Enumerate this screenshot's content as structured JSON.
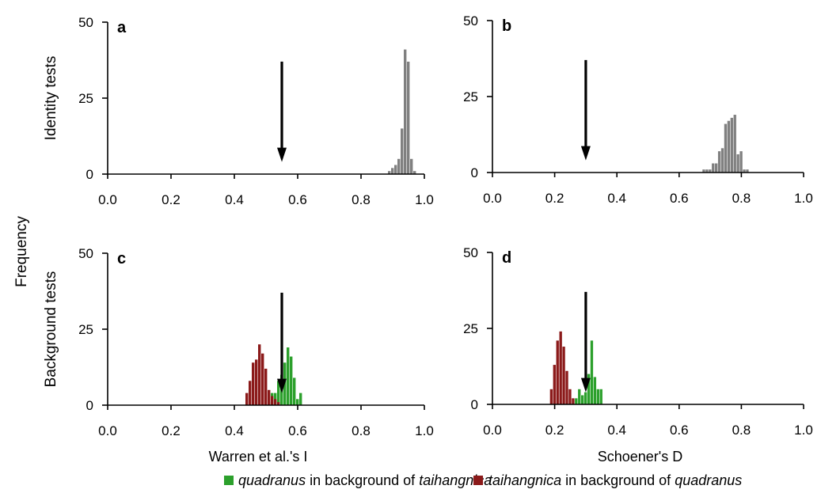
{
  "figure": {
    "ylabel_outer": "Frequency",
    "row_labels": [
      "Identity tests",
      "Background tests"
    ],
    "legend": [
      {
        "prefix": "quadranus",
        "middle": " in background of ",
        "suffix": "taihangnica",
        "color": "#2ca02c"
      },
      {
        "prefix": "taihangnica",
        "middle": " in background of ",
        "suffix": "quadranus",
        "color": "#8b1a1a"
      }
    ]
  },
  "chart_data": [
    {
      "panel": "a",
      "type": "bar",
      "xlabel": "",
      "ylabel": "Identity tests",
      "xlim": [
        0,
        1
      ],
      "ylim": [
        0,
        50
      ],
      "xticks": [
        "0.0",
        "0.2",
        "0.4",
        "0.6",
        "0.8",
        "1.0"
      ],
      "yticks": [
        "0",
        "25",
        "50"
      ],
      "bin_width": 0.01,
      "arrow_x": 0.55,
      "series": [
        {
          "color": "#808080",
          "x": [
            0.89,
            0.9,
            0.91,
            0.92,
            0.93,
            0.94,
            0.95,
            0.96,
            0.97
          ],
          "values": [
            1,
            2,
            3,
            5,
            15,
            41,
            37,
            5,
            1
          ]
        }
      ]
    },
    {
      "panel": "b",
      "type": "bar",
      "xlabel": "",
      "ylabel": "",
      "xlim": [
        0,
        1
      ],
      "ylim": [
        0,
        50
      ],
      "xticks": [
        "0.0",
        "0.2",
        "0.4",
        "0.6",
        "0.8",
        "1.0"
      ],
      "yticks": [
        "0",
        "25",
        "50"
      ],
      "bin_width": 0.01,
      "arrow_x": 0.3,
      "series": [
        {
          "color": "#808080",
          "x": [
            0.68,
            0.69,
            0.7,
            0.71,
            0.72,
            0.73,
            0.74,
            0.75,
            0.76,
            0.77,
            0.78,
            0.79,
            0.8,
            0.81,
            0.82,
            0.83
          ],
          "values": [
            1,
            1,
            1,
            3,
            3,
            7,
            8,
            16,
            17,
            18,
            19,
            6,
            7,
            1,
            1,
            0
          ]
        }
      ]
    },
    {
      "panel": "c",
      "type": "bar",
      "xlabel": "Warren et al.'s I",
      "ylabel": "Background tests",
      "xlim": [
        0,
        1
      ],
      "ylim": [
        0,
        50
      ],
      "xticks": [
        "0.0",
        "0.2",
        "0.4",
        "0.6",
        "0.8",
        "1.0"
      ],
      "yticks": [
        "0",
        "25",
        "50"
      ],
      "bin_width": 0.01,
      "arrow_x": 0.55,
      "series": [
        {
          "name": "quadranus in background of taihangnica",
          "color": "#2ca02c",
          "x": [
            0.51,
            0.52,
            0.53,
            0.54,
            0.55,
            0.56,
            0.57,
            0.58,
            0.59,
            0.6,
            0.61
          ],
          "values": [
            1,
            4,
            4,
            8,
            10,
            14,
            19,
            16,
            9,
            2,
            4
          ]
        },
        {
          "name": "taihangnica in background of quadranus",
          "color": "#8b1a1a",
          "x": [
            0.44,
            0.45,
            0.46,
            0.47,
            0.48,
            0.49,
            0.5,
            0.51,
            0.52,
            0.53,
            0.54
          ],
          "values": [
            4,
            8,
            14,
            15,
            20,
            17,
            12,
            5,
            3,
            2,
            1
          ]
        }
      ]
    },
    {
      "panel": "d",
      "type": "bar",
      "xlabel": "Schoener's D",
      "ylabel": "",
      "xlim": [
        0,
        1
      ],
      "ylim": [
        0,
        50
      ],
      "xticks": [
        "0.0",
        "0.2",
        "0.4",
        "0.6",
        "0.8",
        "1.0"
      ],
      "yticks": [
        "0",
        "25",
        "50"
      ],
      "bin_width": 0.01,
      "arrow_x": 0.3,
      "series": [
        {
          "name": "quadranus in background of taihangnica",
          "color": "#2ca02c",
          "x": [
            0.27,
            0.28,
            0.29,
            0.3,
            0.31,
            0.32,
            0.33,
            0.34,
            0.35
          ],
          "values": [
            2,
            5,
            3,
            4,
            10,
            21,
            9,
            5,
            5
          ]
        },
        {
          "name": "taihangnica in background of quadranus",
          "color": "#8b1a1a",
          "x": [
            0.19,
            0.2,
            0.21,
            0.22,
            0.23,
            0.24,
            0.25,
            0.26
          ],
          "values": [
            5,
            13,
            21,
            24,
            19,
            11,
            5,
            2
          ]
        }
      ]
    }
  ]
}
